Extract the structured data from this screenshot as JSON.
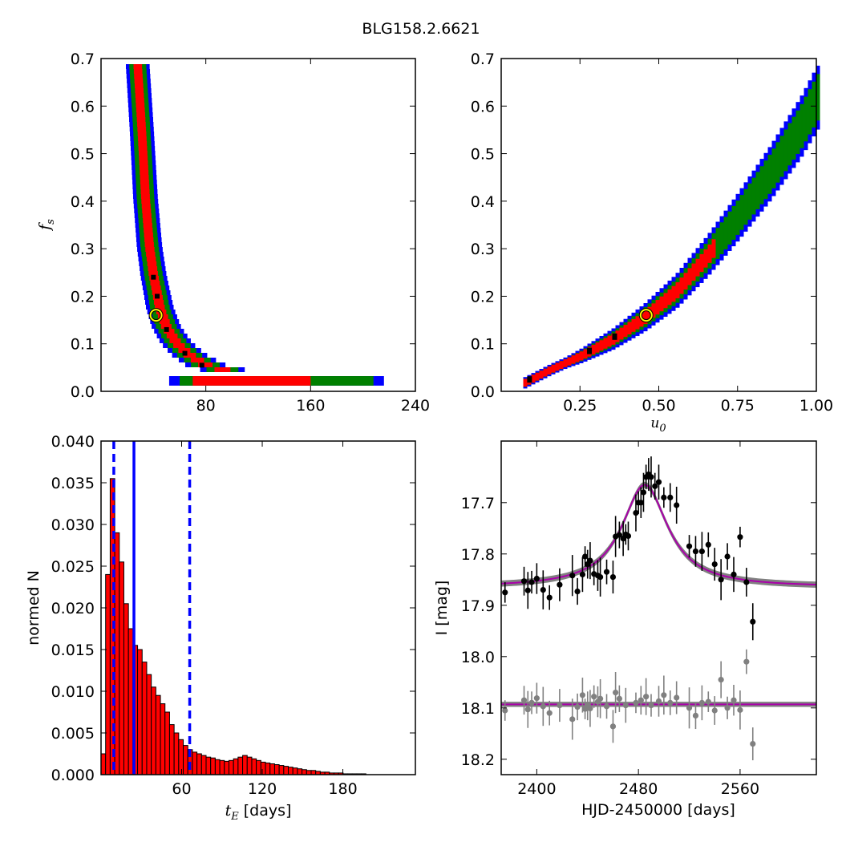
{
  "figure": {
    "suptitle": "BLG158.2.6621"
  },
  "chart_data": [
    {
      "type": "heatmap",
      "panel": "fs-vs-tE",
      "xlabel": "",
      "ylabel": "f_s",
      "xlim": [
        0,
        240
      ],
      "ylim": [
        0,
        0.7
      ],
      "xticks": [
        80,
        160,
        240
      ],
      "yticks": [
        0.0,
        0.1,
        0.2,
        0.3,
        0.4,
        0.5,
        0.6,
        0.7
      ],
      "colors": {
        "outer": "#0000ff",
        "middle": "#008000",
        "inner": "#ff0000",
        "core": "#000000",
        "marker": "#ffff00"
      },
      "curve": [
        [
          28,
          0.68
        ],
        [
          31,
          0.55
        ],
        [
          34,
          0.4
        ],
        [
          37,
          0.3
        ],
        [
          40,
          0.24
        ],
        [
          45,
          0.17
        ],
        [
          50,
          0.13
        ],
        [
          58,
          0.095
        ],
        [
          68,
          0.07
        ],
        [
          80,
          0.05
        ],
        [
          100,
          0.035
        ],
        [
          130,
          0.028
        ],
        [
          170,
          0.022
        ],
        [
          220,
          0.018
        ]
      ],
      "best_fit": {
        "x": 42,
        "y": 0.16
      }
    },
    {
      "type": "heatmap",
      "panel": "fs-vs-u0",
      "xlabel": "u_0",
      "ylabel": "",
      "xlim": [
        0,
        1.0
      ],
      "ylim": [
        0,
        0.7
      ],
      "xticks": [
        0.25,
        0.5,
        0.75,
        1.0
      ],
      "xticklabels": [
        "0.25",
        "0.50",
        "0.75",
        "1.00"
      ],
      "yticks": [
        0.0,
        0.1,
        0.2,
        0.3,
        0.4,
        0.5,
        0.6,
        0.7
      ],
      "colors": {
        "outer": "#0000ff",
        "middle": "#008000",
        "inner": "#ff0000",
        "core": "#000000",
        "marker": "#ffff00"
      },
      "band": [
        [
          0.07,
          0.018
        ],
        [
          0.15,
          0.045
        ],
        [
          0.25,
          0.075
        ],
        [
          0.35,
          0.11
        ],
        [
          0.45,
          0.155
        ],
        [
          0.55,
          0.21
        ],
        [
          0.65,
          0.285
        ],
        [
          0.75,
          0.37
        ],
        [
          0.85,
          0.46
        ],
        [
          0.95,
          0.56
        ],
        [
          1.0,
          0.62
        ]
      ],
      "best_fit": {
        "x": 0.46,
        "y": 0.16
      }
    },
    {
      "type": "bar",
      "panel": "tE-histogram",
      "xlabel": "t_E [days]",
      "ylabel": "normed N",
      "xlim": [
        0,
        234
      ],
      "ylim": [
        0,
        0.04
      ],
      "xticks": [
        60,
        120,
        180
      ],
      "yticks": [
        0.0,
        0.005,
        0.01,
        0.015,
        0.02,
        0.025,
        0.03,
        0.035,
        0.04
      ],
      "yticklabels": [
        "0.000",
        "0.005",
        "0.010",
        "0.015",
        "0.020",
        "0.025",
        "0.030",
        "0.035",
        "0.040"
      ],
      "bin_width": 3.4,
      "bin_start": 0,
      "values": [
        0.0025,
        0.024,
        0.0355,
        0.029,
        0.0255,
        0.0205,
        0.0175,
        0.0155,
        0.015,
        0.0135,
        0.012,
        0.0105,
        0.0095,
        0.0085,
        0.0075,
        0.006,
        0.005,
        0.0042,
        0.0035,
        0.003,
        0.0027,
        0.0025,
        0.0023,
        0.0021,
        0.002,
        0.0018,
        0.0017,
        0.0016,
        0.0017,
        0.0019,
        0.0021,
        0.0023,
        0.0021,
        0.0019,
        0.0017,
        0.0015,
        0.0014,
        0.0013,
        0.0012,
        0.0011,
        0.001,
        0.0009,
        0.0008,
        0.0007,
        0.0006,
        0.0005,
        0.0005,
        0.0004,
        0.0003,
        0.0003,
        0.0002,
        0.0002,
        0.0002,
        0.0001,
        0.0001,
        0.0001,
        0.0001,
        0.0001
      ],
      "bar_color": "#ff0000",
      "vlines": [
        {
          "x": 9.5,
          "style": "dashed",
          "color": "#0000ff"
        },
        {
          "x": 24.5,
          "style": "solid",
          "color": "#0000ff"
        },
        {
          "x": 66,
          "style": "dashed",
          "color": "#0000ff"
        }
      ]
    },
    {
      "type": "scatter",
      "panel": "light-curve",
      "xlabel": "HJD-2450000 [days]",
      "ylabel": "I [mag]",
      "xlim": [
        2372,
        2620
      ],
      "ylim": [
        18.23,
        17.58
      ],
      "xticks": [
        2400,
        2480,
        2560
      ],
      "yticks": [
        17.7,
        17.8,
        17.9,
        18.0,
        18.1,
        18.2
      ],
      "model": {
        "t0": 2485,
        "peak": 17.665,
        "base": 17.865,
        "tau": 22,
        "color": "#aa00aa",
        "envelope_color": "#808080"
      },
      "residual_baseline": 18.093,
      "series": [
        {
          "name": "",
          "color": "#000000",
          "x": [
            2375,
            2390,
            2393,
            2396,
            2400,
            2405,
            2410,
            2418,
            2428,
            2432,
            2436,
            2438,
            2440,
            2442,
            2445,
            2448,
            2450,
            2455,
            2460,
            2462,
            2465,
            2468,
            2470,
            2472,
            2478,
            2480,
            2482,
            2484,
            2486,
            2488,
            2490,
            2493,
            2496,
            2500,
            2505,
            2510,
            2520,
            2525,
            2530,
            2535,
            2540,
            2545,
            2550,
            2555,
            2560,
            2565,
            2570
          ],
          "y": [
            17.875,
            17.853,
            17.871,
            17.855,
            17.848,
            17.87,
            17.885,
            17.86,
            17.842,
            17.873,
            17.84,
            17.805,
            17.82,
            17.813,
            17.839,
            17.842,
            17.845,
            17.835,
            17.845,
            17.766,
            17.763,
            17.77,
            17.762,
            17.765,
            17.72,
            17.7,
            17.7,
            17.68,
            17.65,
            17.645,
            17.65,
            17.668,
            17.66,
            17.69,
            17.69,
            17.705,
            17.785,
            17.795,
            17.795,
            17.782,
            17.82,
            17.85,
            17.805,
            17.84,
            17.767,
            17.855,
            17.932
          ]
        },
        {
          "name": "",
          "color": "#808080",
          "x": [
            2375,
            2390,
            2393,
            2396,
            2400,
            2405,
            2410,
            2418,
            2428,
            2432,
            2436,
            2438,
            2440,
            2442,
            2445,
            2448,
            2450,
            2455,
            2460,
            2462,
            2465,
            2470,
            2478,
            2482,
            2486,
            2490,
            2496,
            2500,
            2505,
            2510,
            2520,
            2525,
            2530,
            2535,
            2540,
            2545,
            2550,
            2555,
            2560,
            2565,
            2570
          ],
          "y": [
            18.105,
            18.085,
            18.103,
            18.09,
            18.081,
            18.097,
            18.11,
            18.095,
            18.122,
            18.098,
            18.075,
            18.102,
            18.096,
            18.101,
            18.078,
            18.088,
            18.082,
            18.097,
            18.136,
            18.07,
            18.082,
            18.095,
            18.09,
            18.085,
            18.078,
            18.095,
            18.087,
            18.075,
            18.09,
            18.08,
            18.1,
            18.115,
            18.09,
            18.088,
            18.105,
            18.045,
            18.1,
            18.085,
            18.104,
            18.01,
            18.17
          ]
        }
      ]
    }
  ]
}
